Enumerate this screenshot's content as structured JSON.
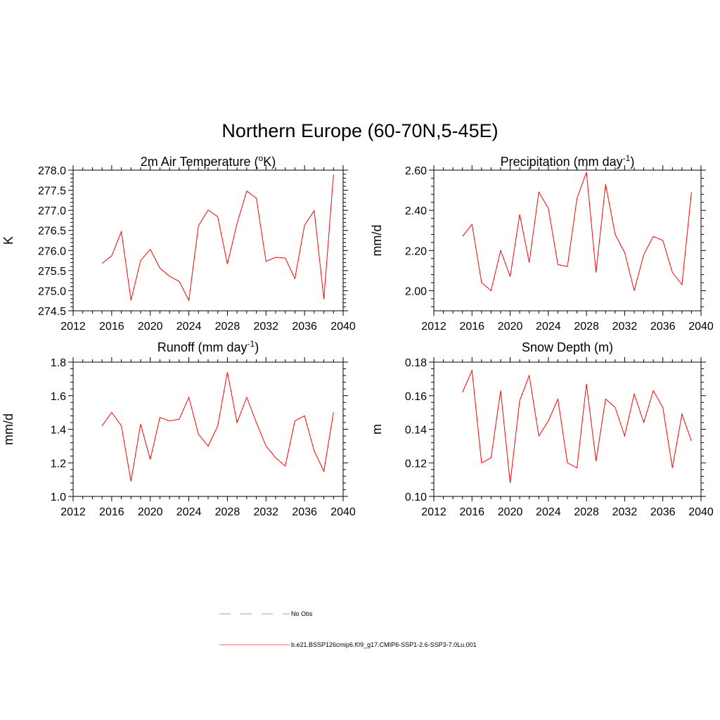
{
  "figure_title": "Northern Europe (60-70N,5-45E)",
  "chart_data": [
    {
      "type": "line",
      "title": "2m Air Temperature (",
      "title_sup": "o",
      "title_post": "K)",
      "xlabel": "",
      "ylabel": "K",
      "xlim": [
        2012,
        2040
      ],
      "ylim": [
        274.5,
        278.0
      ],
      "xticks": [
        2012,
        2016,
        2020,
        2024,
        2028,
        2032,
        2036,
        2040
      ],
      "yticks": [
        "274.5",
        "275.0",
        "275.5",
        "276.0",
        "276.5",
        "277.0",
        "277.5",
        "278.0"
      ],
      "x": [
        2015,
        2016,
        2017,
        2018,
        2019,
        2020,
        2021,
        2022,
        2023,
        2024,
        2025,
        2026,
        2027,
        2028,
        2029,
        2030,
        2031,
        2032,
        2033,
        2034,
        2035,
        2036,
        2037,
        2038,
        2039
      ],
      "series": [
        {
          "color": "#ff0000",
          "values": [
            275.68,
            275.87,
            276.47,
            274.76,
            275.75,
            276.03,
            275.56,
            275.36,
            275.23,
            274.76,
            276.62,
            277.01,
            276.84,
            275.66,
            276.67,
            277.48,
            277.3,
            275.73,
            275.83,
            275.81,
            275.3,
            276.63,
            276.99,
            274.79,
            277.89
          ]
        }
      ]
    },
    {
      "type": "line",
      "title": "Precipitation (mm day",
      "title_sup": "-1",
      "title_post": ")",
      "xlabel": "",
      "ylabel": "mm/d",
      "xlim": [
        2012,
        2040
      ],
      "ylim": [
        1.9,
        2.6
      ],
      "xticks": [
        2012,
        2016,
        2020,
        2024,
        2028,
        2032,
        2036,
        2040
      ],
      "yticks": [
        "2.00",
        "2.20",
        "2.40",
        "2.60"
      ],
      "x": [
        2015,
        2016,
        2017,
        2018,
        2019,
        2020,
        2021,
        2022,
        2023,
        2024,
        2025,
        2026,
        2027,
        2028,
        2029,
        2030,
        2031,
        2032,
        2033,
        2034,
        2035,
        2036,
        2037,
        2038,
        2039
      ],
      "series": [
        {
          "color": "#ff0000",
          "values": [
            2.27,
            2.33,
            2.04,
            2.0,
            2.2,
            2.07,
            2.38,
            2.14,
            2.49,
            2.41,
            2.13,
            2.12,
            2.46,
            2.59,
            2.09,
            2.53,
            2.28,
            2.19,
            2.0,
            2.18,
            2.27,
            2.25,
            2.09,
            2.03,
            2.49
          ]
        }
      ]
    },
    {
      "type": "line",
      "title": "Runoff (mm day",
      "title_sup": "-1",
      "title_post": ")",
      "xlabel": "",
      "ylabel": "mm/d",
      "xlim": [
        2012,
        2040
      ],
      "ylim": [
        1.0,
        1.8
      ],
      "xticks": [
        2012,
        2016,
        2020,
        2024,
        2028,
        2032,
        2036,
        2040
      ],
      "yticks": [
        "1.0",
        "1.2",
        "1.4",
        "1.6",
        "1.8"
      ],
      "x": [
        2015,
        2016,
        2017,
        2018,
        2019,
        2020,
        2021,
        2022,
        2023,
        2024,
        2025,
        2026,
        2027,
        2028,
        2029,
        2030,
        2031,
        2032,
        2033,
        2034,
        2035,
        2036,
        2037,
        2038,
        2039
      ],
      "series": [
        {
          "color": "#ff0000",
          "values": [
            1.42,
            1.5,
            1.42,
            1.09,
            1.43,
            1.22,
            1.47,
            1.45,
            1.46,
            1.59,
            1.37,
            1.3,
            1.42,
            1.74,
            1.44,
            1.59,
            1.44,
            1.3,
            1.23,
            1.18,
            1.45,
            1.48,
            1.27,
            1.15,
            1.5
          ]
        }
      ]
    },
    {
      "type": "line",
      "title": "Snow Depth (m)",
      "title_sup": "",
      "title_post": "",
      "xlabel": "",
      "ylabel": "m",
      "xlim": [
        2012,
        2040
      ],
      "ylim": [
        0.1,
        0.18
      ],
      "xticks": [
        2012,
        2016,
        2020,
        2024,
        2028,
        2032,
        2036,
        2040
      ],
      "yticks": [
        "0.10",
        "0.12",
        "0.14",
        "0.16",
        "0.18"
      ],
      "x": [
        2015,
        2016,
        2017,
        2018,
        2019,
        2020,
        2021,
        2022,
        2023,
        2024,
        2025,
        2026,
        2027,
        2028,
        2029,
        2030,
        2031,
        2032,
        2033,
        2034,
        2035,
        2036,
        2037,
        2038,
        2039
      ],
      "series": [
        {
          "color": "#ff0000",
          "values": [
            0.162,
            0.175,
            0.12,
            0.123,
            0.163,
            0.108,
            0.157,
            0.172,
            0.136,
            0.145,
            0.158,
            0.12,
            0.117,
            0.167,
            0.121,
            0.158,
            0.153,
            0.136,
            0.161,
            0.144,
            0.163,
            0.153,
            0.117,
            0.149,
            0.133
          ]
        }
      ]
    }
  ],
  "legend": [
    {
      "label": "No Obs",
      "color": "#9999dd",
      "dash": true
    },
    {
      "label": "b.e21.BSSP126cmip6.f09_g17.CMIP6-SSP1-2.6-SSP3-7.0Lu.001",
      "color": "#ff6666",
      "dash": false
    }
  ]
}
